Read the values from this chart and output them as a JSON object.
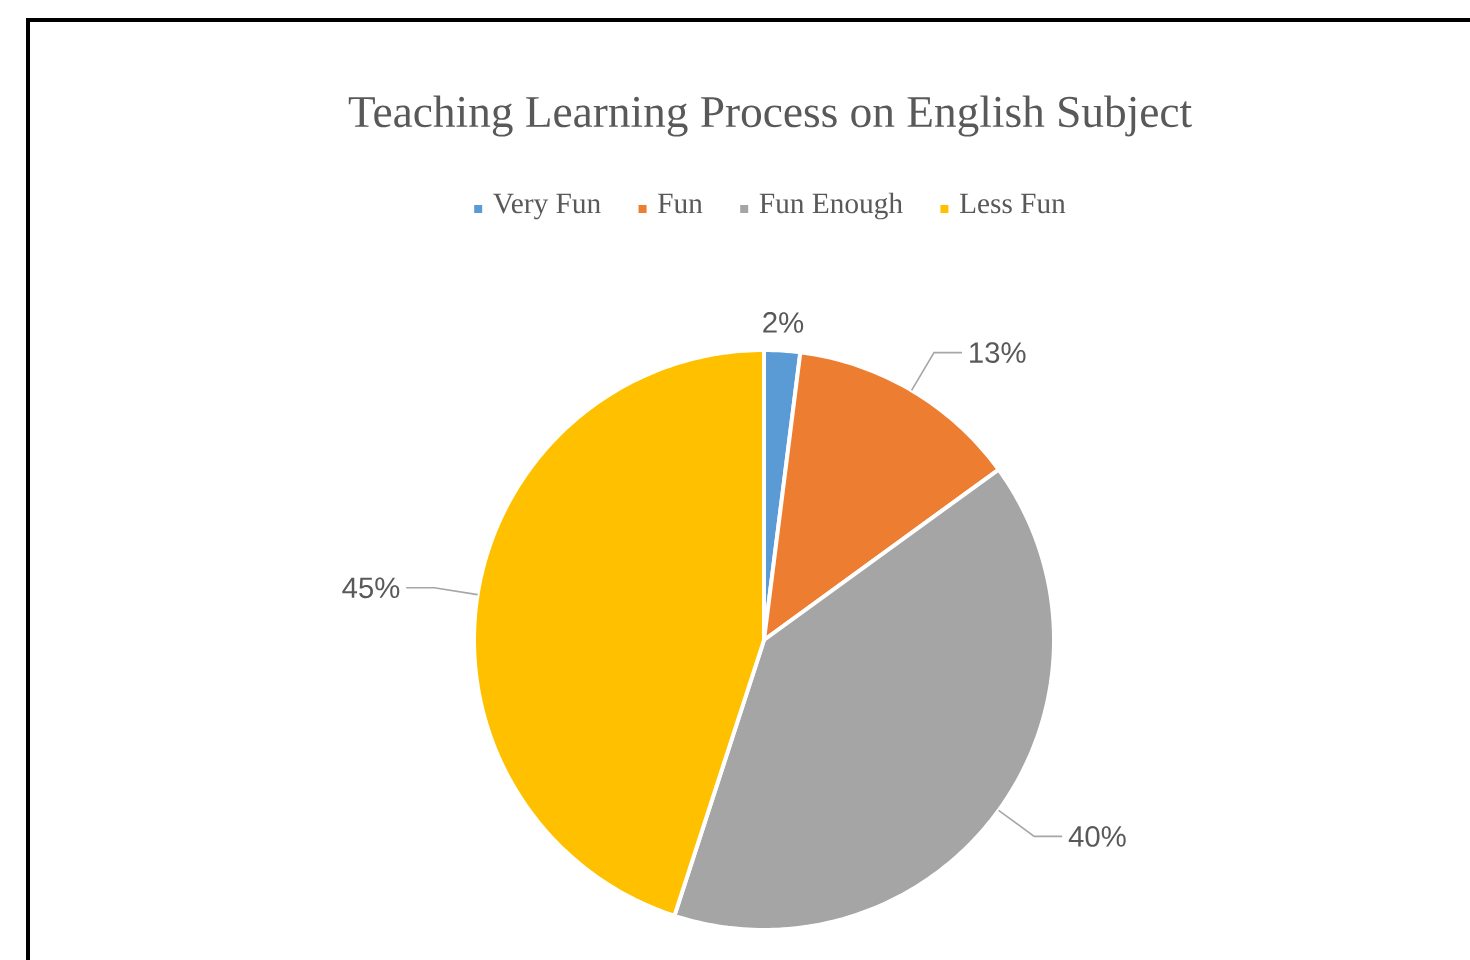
{
  "chart_data": {
    "type": "pie",
    "title": "Teaching Learning Process on English Subject",
    "categories": [
      "Very Fun",
      "Fun",
      "Fun Enough",
      "Less Fun"
    ],
    "values": [
      2,
      13,
      40,
      45
    ],
    "colors": [
      "#5b9bd5",
      "#ed7d31",
      "#a5a5a5",
      "#ffc000"
    ],
    "value_labels": [
      "2%",
      "13%",
      "40%",
      "45%"
    ],
    "legend": "top"
  }
}
